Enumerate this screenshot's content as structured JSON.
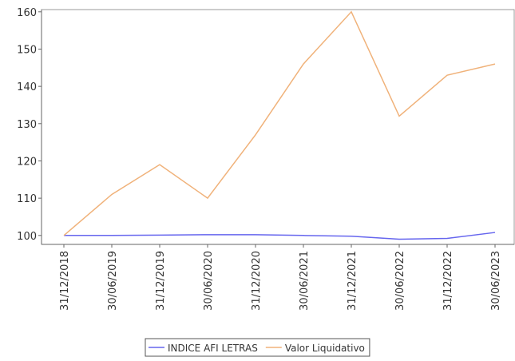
{
  "chart_data": {
    "type": "line",
    "categories": [
      "31/12/2018",
      "30/06/2019",
      "31/12/2019",
      "30/06/2020",
      "31/12/2020",
      "30/06/2021",
      "31/12/2021",
      "30/06/2022",
      "31/12/2022",
      "30/06/2023"
    ],
    "series": [
      {
        "name": "INDICE AFI LETRAS",
        "color": "#6666ee",
        "values": [
          100,
          100,
          100.1,
          100.2,
          100.2,
          100,
          99.8,
          99,
          99.2,
          100.8
        ]
      },
      {
        "name": "Valor Liquidativo",
        "color": "#f0b27a",
        "values": [
          100,
          111,
          119,
          110,
          127,
          146,
          160,
          132,
          143,
          146
        ]
      }
    ],
    "ylim": [
      97.6,
      160.6
    ],
    "yticks": [
      100,
      110,
      120,
      130,
      140,
      150,
      160
    ],
    "grid": false,
    "legend": "bottom"
  }
}
